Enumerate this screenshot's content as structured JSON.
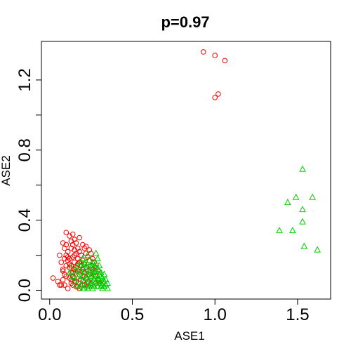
{
  "chart_data": {
    "type": "scatter",
    "title": "p=0.97",
    "xlabel": "ASE1",
    "ylabel": "ASE2",
    "xlim": [
      -0.05,
      1.7
    ],
    "ylim": [
      -0.05,
      1.42
    ],
    "xticks": [
      0.0,
      0.5,
      1.0,
      1.5
    ],
    "xtick_labels": [
      "0.0",
      "0.5",
      "1.0",
      "1.5"
    ],
    "yticks": [
      0.0,
      0.4,
      0.8,
      1.2
    ],
    "ytick_labels": [
      "0.0",
      "0.4",
      "0.8",
      "1.2"
    ],
    "yminor": [
      0.2,
      0.6,
      1.0
    ],
    "series": [
      {
        "marker": "circle",
        "color": "#ff0000",
        "points": [
          [
            0.93,
            1.36
          ],
          [
            1.0,
            1.34
          ],
          [
            1.06,
            1.31
          ],
          [
            1.0,
            1.1
          ],
          [
            1.02,
            1.12
          ],
          [
            0.02,
            0.07
          ],
          [
            0.05,
            0.05
          ],
          [
            0.06,
            0.03
          ],
          [
            0.07,
            0.03
          ],
          [
            0.08,
            0.06
          ],
          [
            0.09,
            0.03
          ],
          [
            0.1,
            0.08
          ],
          [
            0.11,
            0.01
          ],
          [
            0.13,
            0.06
          ],
          [
            0.14,
            0.03
          ],
          [
            0.16,
            0.02
          ],
          [
            0.18,
            0.01
          ],
          [
            0.2,
            0.03
          ],
          [
            0.06,
            0.2
          ],
          [
            0.07,
            0.16
          ],
          [
            0.08,
            0.12
          ],
          [
            0.09,
            0.09
          ],
          [
            0.1,
            0.26
          ],
          [
            0.11,
            0.22
          ],
          [
            0.12,
            0.18
          ],
          [
            0.13,
            0.14
          ],
          [
            0.14,
            0.1
          ],
          [
            0.15,
            0.07
          ],
          [
            0.16,
            0.05
          ],
          [
            0.17,
            0.02
          ],
          [
            0.08,
            0.27
          ],
          [
            0.09,
            0.24
          ],
          [
            0.1,
            0.2
          ],
          [
            0.11,
            0.17
          ],
          [
            0.12,
            0.13
          ],
          [
            0.13,
            0.1
          ],
          [
            0.14,
            0.08
          ],
          [
            0.15,
            0.05
          ],
          [
            0.1,
            0.33
          ],
          [
            0.12,
            0.31
          ],
          [
            0.13,
            0.28
          ],
          [
            0.14,
            0.26
          ],
          [
            0.15,
            0.23
          ],
          [
            0.16,
            0.21
          ],
          [
            0.17,
            0.18
          ],
          [
            0.18,
            0.16
          ],
          [
            0.19,
            0.14
          ],
          [
            0.2,
            0.12
          ],
          [
            0.21,
            0.1
          ],
          [
            0.22,
            0.07
          ],
          [
            0.14,
            0.32
          ],
          [
            0.15,
            0.29
          ],
          [
            0.16,
            0.27
          ],
          [
            0.17,
            0.24
          ],
          [
            0.18,
            0.22
          ],
          [
            0.19,
            0.2
          ],
          [
            0.2,
            0.17
          ],
          [
            0.21,
            0.15
          ],
          [
            0.22,
            0.13
          ],
          [
            0.23,
            0.11
          ],
          [
            0.24,
            0.09
          ],
          [
            0.25,
            0.07
          ],
          [
            0.18,
            0.3
          ],
          [
            0.2,
            0.26
          ],
          [
            0.21,
            0.24
          ],
          [
            0.22,
            0.21
          ],
          [
            0.23,
            0.19
          ],
          [
            0.24,
            0.17
          ],
          [
            0.25,
            0.14
          ],
          [
            0.26,
            0.12
          ],
          [
            0.27,
            0.1
          ],
          [
            0.28,
            0.08
          ],
          [
            0.29,
            0.06
          ],
          [
            0.3,
            0.04
          ],
          [
            0.22,
            0.25
          ],
          [
            0.24,
            0.23
          ],
          [
            0.25,
            0.21
          ],
          [
            0.26,
            0.18
          ],
          [
            0.27,
            0.16
          ],
          [
            0.28,
            0.13
          ],
          [
            0.11,
            0.19
          ],
          [
            0.12,
            0.15
          ],
          [
            0.14,
            0.19
          ],
          [
            0.15,
            0.16
          ],
          [
            0.16,
            0.13
          ],
          [
            0.17,
            0.11
          ],
          [
            0.18,
            0.09
          ],
          [
            0.19,
            0.06
          ],
          [
            0.2,
            0.05
          ],
          [
            0.21,
            0.03
          ],
          [
            0.23,
            0.02
          ],
          [
            0.25,
            0.04
          ],
          [
            0.13,
            0.24
          ],
          [
            0.15,
            0.2
          ],
          [
            0.17,
            0.15
          ],
          [
            0.19,
            0.11
          ],
          [
            0.21,
            0.08
          ],
          [
            0.23,
            0.05
          ],
          [
            0.08,
            0.11
          ],
          [
            0.09,
            0.18
          ],
          [
            0.1,
            0.14
          ],
          [
            0.12,
            0.07
          ],
          [
            0.13,
            0.04
          ],
          [
            0.15,
            0.12
          ]
        ]
      },
      {
        "marker": "triangle",
        "color": "#00cd00",
        "points": [
          [
            1.53,
            0.69
          ],
          [
            1.49,
            0.53
          ],
          [
            1.59,
            0.53
          ],
          [
            1.44,
            0.5
          ],
          [
            1.53,
            0.46
          ],
          [
            1.53,
            0.39
          ],
          [
            1.47,
            0.34
          ],
          [
            1.39,
            0.34
          ],
          [
            1.54,
            0.25
          ],
          [
            1.62,
            0.23
          ],
          [
            0.26,
            0.16
          ],
          [
            0.28,
            0.21
          ],
          [
            0.29,
            0.18
          ],
          [
            0.3,
            0.14
          ],
          [
            0.31,
            0.1
          ],
          [
            0.32,
            0.07
          ],
          [
            0.33,
            0.05
          ],
          [
            0.34,
            0.03
          ],
          [
            0.35,
            0.01
          ],
          [
            0.27,
            0.12
          ],
          [
            0.28,
            0.09
          ],
          [
            0.29,
            0.07
          ],
          [
            0.3,
            0.04
          ],
          [
            0.31,
            0.02
          ],
          [
            0.32,
            0.01
          ],
          [
            0.33,
            0.09
          ],
          [
            0.34,
            0.06
          ],
          [
            0.26,
            0.03
          ],
          [
            0.27,
            0.06
          ],
          [
            0.23,
            0.2
          ],
          [
            0.24,
            0.17
          ],
          [
            0.25,
            0.13
          ],
          [
            0.26,
            0.1
          ],
          [
            0.27,
            0.08
          ],
          [
            0.28,
            0.05
          ],
          [
            0.29,
            0.02
          ],
          [
            0.3,
            0.11
          ],
          [
            0.31,
            0.08
          ],
          [
            0.32,
            0.03
          ],
          [
            0.2,
            0.18
          ],
          [
            0.21,
            0.15
          ],
          [
            0.22,
            0.12
          ],
          [
            0.23,
            0.09
          ],
          [
            0.24,
            0.06
          ],
          [
            0.25,
            0.03
          ],
          [
            0.26,
            0.01
          ],
          [
            0.27,
            0.02
          ],
          [
            0.28,
            0.15
          ],
          [
            0.29,
            0.12
          ],
          [
            0.17,
            0.14
          ],
          [
            0.18,
            0.12
          ],
          [
            0.19,
            0.1
          ],
          [
            0.2,
            0.08
          ],
          [
            0.21,
            0.05
          ],
          [
            0.22,
            0.03
          ],
          [
            0.23,
            0.01
          ],
          [
            0.24,
            0.02
          ],
          [
            0.25,
            0.08
          ],
          [
            0.26,
            0.05
          ],
          [
            0.14,
            0.08
          ],
          [
            0.15,
            0.05
          ],
          [
            0.16,
            0.03
          ],
          [
            0.17,
            0.09
          ],
          [
            0.18,
            0.06
          ],
          [
            0.19,
            0.03
          ],
          [
            0.2,
            0.01
          ],
          [
            0.21,
            0.11
          ],
          [
            0.22,
            0.07
          ],
          [
            0.23,
            0.04
          ],
          [
            0.24,
            0.13
          ],
          [
            0.25,
            0.1
          ],
          [
            0.3,
            0.06
          ],
          [
            0.31,
            0.04
          ],
          [
            0.33,
            0.02
          ],
          [
            0.35,
            0.04
          ],
          [
            0.12,
            0.1
          ],
          [
            0.13,
            0.13
          ],
          [
            0.16,
            0.11
          ],
          [
            0.19,
            0.16
          ],
          [
            0.22,
            0.16
          ],
          [
            0.24,
            0.11
          ],
          [
            0.27,
            0.14
          ],
          [
            0.2,
            0.13
          ],
          [
            0.18,
            0.02
          ],
          [
            0.21,
            0.01
          ],
          [
            0.28,
            0.11
          ],
          [
            0.3,
            0.09
          ],
          [
            0.29,
            0.04
          ],
          [
            0.32,
            0.05
          ]
        ]
      }
    ]
  }
}
